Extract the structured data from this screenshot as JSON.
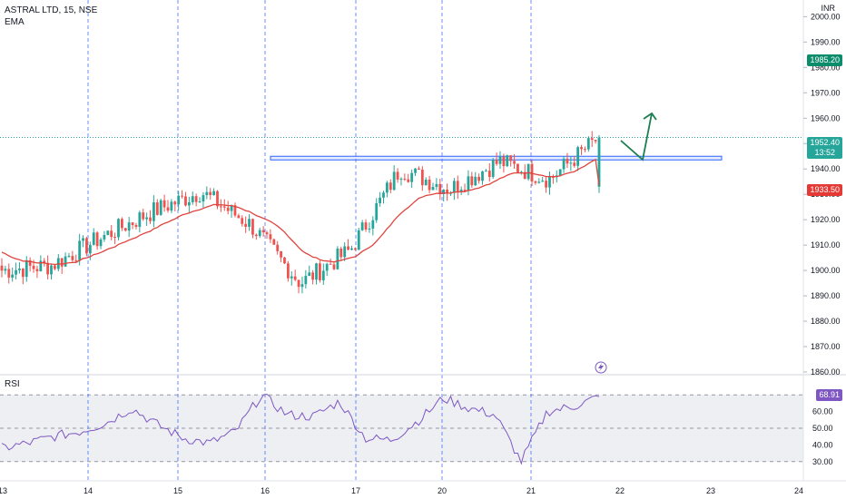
{
  "header": {
    "symbol": "ASTRAL LTD, 15, NSE",
    "indicator": "EMA",
    "currency": "INR"
  },
  "rsi_pane": {
    "label": "RSI",
    "value_label": "68.91"
  },
  "badges": {
    "upper": "1985.20",
    "current_price": "1952.40",
    "countdown": "13:52",
    "ema_value": "1933.50"
  },
  "colors": {
    "up": "#26a69a",
    "down": "#ef5350",
    "ema": "#e0443e",
    "rsi_line": "#7e57c2",
    "zone": "#2962ff",
    "session_line": "#2962ff",
    "arrow": "#1b7f4f",
    "upper_badge": "#0b8c6a",
    "ema_badge": "#e53935"
  },
  "chart_data": {
    "type": "candlestick",
    "symbol": "ASTRAL LTD",
    "interval": "15",
    "exchange": "NSE",
    "price_axis": {
      "ylim": [
        1860,
        2003
      ],
      "ticks": [
        1860,
        1870,
        1880,
        1890,
        1900,
        1910,
        1920,
        1930,
        1940,
        1950,
        1960,
        1970,
        1980,
        1990,
        2000
      ],
      "tick_labels": [
        "1860.00",
        "1870.00",
        "1880.00",
        "1890.00",
        "1900.00",
        "1910.00",
        "1920.00",
        "1930.00",
        "1940.00",
        "1950.00",
        "1960.00",
        "1970.00",
        "1980.00",
        "1990.00",
        "2000.00"
      ]
    },
    "x_axis": {
      "labels": [
        "13",
        "14",
        "15",
        "16",
        "17",
        "20",
        "21",
        "22",
        "23",
        "24"
      ]
    },
    "resistance_zone": [
      1944,
      1945
    ],
    "rsi_axis": {
      "ylim": [
        25,
        75
      ],
      "tick_labels": [
        "30.00",
        "40.00",
        "50.00",
        "60.00"
      ],
      "bands": [
        30,
        70
      ],
      "mid": 50
    },
    "key_prices": [
      1900,
      1902,
      1913,
      1923,
      1931,
      1918,
      1895,
      1908,
      1940,
      1932,
      1943,
      1936,
      1952.4
    ],
    "rsi": [
      38,
      41,
      45,
      48,
      53,
      62,
      52,
      44,
      41,
      48,
      70,
      58,
      57,
      66,
      44,
      43,
      54,
      68,
      62,
      58,
      30,
      60,
      63,
      68.91
    ],
    "ema_label_value": 1933.5,
    "last_price": 1952.4
  }
}
